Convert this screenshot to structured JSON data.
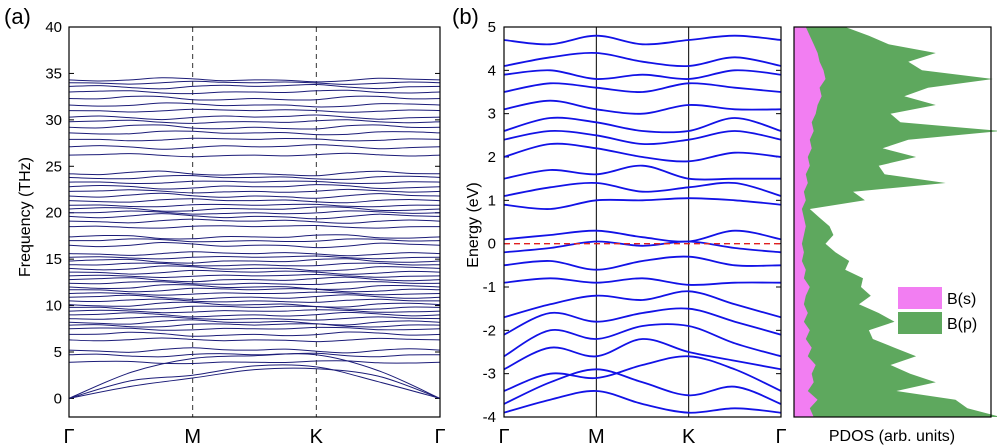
{
  "colors": {
    "phonon": "#1c1c78",
    "bands": "#1212e6",
    "fermi": "#e02020",
    "bs": "#f27ef2",
    "bp": "#5ea85e",
    "axis": "#000000",
    "kline": "#333333"
  },
  "chart_data": [
    {
      "panel": "(a)",
      "type": "line",
      "ylabel": "Frequency (THz)",
      "ylim": [
        -2,
        40
      ],
      "yticks": [
        "0",
        "5",
        "10",
        "15",
        "20",
        "25",
        "30",
        "35",
        "40"
      ],
      "xticks": [
        "Γ",
        "M",
        "K",
        "Γ"
      ],
      "vertical_lines": "dashed at M and K",
      "acoustic_branches": [
        {
          "x": [
            0,
            0.5,
            1,
            1.5,
            2,
            2.5,
            3
          ],
          "y": [
            0,
            1.3,
            2.2,
            3.1,
            3.2,
            2.4,
            0
          ]
        },
        {
          "x": [
            0,
            0.5,
            1,
            1.5,
            2,
            2.5,
            3
          ],
          "y": [
            0,
            1.9,
            2.5,
            3.5,
            3.4,
            1.8,
            0
          ]
        },
        {
          "x": [
            0,
            0.5,
            1,
            1.5,
            2,
            2.5,
            3
          ],
          "y": [
            0,
            2.8,
            4.3,
            4.6,
            4.7,
            3.0,
            0
          ]
        }
      ],
      "optical_band_levels_THz": [
        3.9,
        4.7,
        5.2,
        6.3,
        6.9,
        7.5,
        7.9,
        8.2,
        8.6,
        9.0,
        9.4,
        9.8,
        10.1,
        10.5,
        10.9,
        11.3,
        11.7,
        12.0,
        12.4,
        12.8,
        13.2,
        13.6,
        14.0,
        14.4,
        14.8,
        15.2,
        15.6,
        16.5,
        17.0,
        17.4,
        18.5,
        19.1,
        19.6,
        20.0,
        20.4,
        20.8,
        21.3,
        21.8,
        22.3,
        22.8,
        23.3,
        23.8,
        24.2,
        26.2,
        27.1,
        27.9,
        28.6,
        29.2,
        29.8,
        30.3,
        31.0,
        31.6,
        32.3,
        33.0,
        33.6,
        34.0,
        34.3
      ]
    },
    {
      "panel": "(b)",
      "type": "line",
      "ylabel": "Energy (eV)",
      "ylim": [
        -4,
        5
      ],
      "yticks": [
        "-4",
        "-3",
        "-2",
        "-1",
        "0",
        "1",
        "2",
        "3",
        "4",
        "5"
      ],
      "xticks": [
        "Γ",
        "M",
        "K",
        "Γ"
      ],
      "fermi_level_eV": 0,
      "bands": [
        {
          "x": [
            0,
            0.5,
            1,
            1.5,
            2,
            2.5,
            3
          ],
          "y": [
            -3.9,
            -3.6,
            -3.4,
            -3.7,
            -3.9,
            -3.8,
            -3.9
          ]
        },
        {
          "x": [
            0,
            0.5,
            1,
            1.5,
            2,
            2.5,
            3
          ],
          "y": [
            -3.7,
            -3.2,
            -2.9,
            -3.2,
            -3.5,
            -3.3,
            -3.7
          ]
        },
        {
          "x": [
            0,
            0.5,
            1,
            1.5,
            2,
            2.5,
            3
          ],
          "y": [
            -3.4,
            -3.0,
            -3.1,
            -2.8,
            -2.6,
            -2.9,
            -3.4
          ]
        },
        {
          "x": [
            0,
            0.5,
            1,
            1.5,
            2,
            2.5,
            3
          ],
          "y": [
            -2.9,
            -2.4,
            -2.6,
            -2.2,
            -2.5,
            -2.7,
            -2.9
          ]
        },
        {
          "x": [
            0,
            0.5,
            1,
            1.5,
            2,
            2.5,
            3
          ],
          "y": [
            -2.6,
            -2.0,
            -2.2,
            -1.9,
            -1.9,
            -2.3,
            -2.6
          ]
        },
        {
          "x": [
            0,
            0.5,
            1,
            1.5,
            2,
            2.5,
            3
          ],
          "y": [
            -2.1,
            -1.6,
            -1.8,
            -1.6,
            -1.5,
            -1.8,
            -2.1
          ]
        },
        {
          "x": [
            0,
            0.5,
            1,
            1.5,
            2,
            2.5,
            3
          ],
          "y": [
            -1.7,
            -1.4,
            -1.2,
            -1.3,
            -1.1,
            -1.4,
            -1.7
          ]
        },
        {
          "x": [
            0,
            0.5,
            1,
            1.5,
            2,
            2.5,
            3
          ],
          "y": [
            -0.9,
            -0.8,
            -0.9,
            -0.8,
            -0.95,
            -0.9,
            -0.9
          ]
        },
        {
          "x": [
            0,
            0.5,
            1,
            1.5,
            2,
            2.5,
            3
          ],
          "y": [
            -0.5,
            -0.4,
            -0.6,
            -0.4,
            -0.3,
            -0.5,
            -0.5
          ]
        },
        {
          "x": [
            0,
            0.5,
            1,
            1.5,
            2,
            2.5,
            3
          ],
          "y": [
            -0.2,
            -0.1,
            0.05,
            -0.05,
            0.05,
            -0.1,
            -0.2
          ]
        },
        {
          "x": [
            0,
            0.5,
            1,
            1.5,
            2,
            2.5,
            3
          ],
          "y": [
            0.1,
            0.2,
            0.3,
            0.15,
            0.05,
            0.3,
            0.1
          ]
        },
        {
          "x": [
            0,
            0.5,
            1,
            1.5,
            2,
            2.5,
            3
          ],
          "y": [
            0.9,
            0.8,
            1.0,
            1.0,
            1.05,
            1.0,
            0.9
          ]
        },
        {
          "x": [
            0,
            0.5,
            1,
            1.5,
            2,
            2.5,
            3
          ],
          "y": [
            1.1,
            1.3,
            1.4,
            1.2,
            1.3,
            1.4,
            1.1
          ]
        },
        {
          "x": [
            0,
            0.5,
            1,
            1.5,
            2,
            2.5,
            3
          ],
          "y": [
            1.5,
            1.7,
            1.6,
            1.8,
            1.5,
            1.5,
            1.5
          ]
        },
        {
          "x": [
            0,
            0.5,
            1,
            1.5,
            2,
            2.5,
            3
          ],
          "y": [
            2.0,
            2.3,
            2.2,
            2.0,
            1.9,
            2.1,
            2.0
          ]
        },
        {
          "x": [
            0,
            0.5,
            1,
            1.5,
            2,
            2.5,
            3
          ],
          "y": [
            2.4,
            2.6,
            2.5,
            2.3,
            2.4,
            2.6,
            2.4
          ]
        },
        {
          "x": [
            0,
            0.5,
            1,
            1.5,
            2,
            2.5,
            3
          ],
          "y": [
            2.6,
            2.9,
            2.8,
            2.6,
            2.6,
            2.9,
            2.6
          ]
        },
        {
          "x": [
            0,
            0.5,
            1,
            1.5,
            2,
            2.5,
            3
          ],
          "y": [
            3.1,
            3.3,
            3.1,
            3.0,
            3.2,
            3.1,
            3.1
          ]
        },
        {
          "x": [
            0,
            0.5,
            1,
            1.5,
            2,
            2.5,
            3
          ],
          "y": [
            3.5,
            3.7,
            3.6,
            3.5,
            3.7,
            3.6,
            3.5
          ]
        },
        {
          "x": [
            0,
            0.5,
            1,
            1.5,
            2,
            2.5,
            3
          ],
          "y": [
            3.9,
            4.0,
            3.8,
            3.9,
            3.8,
            4.0,
            3.9
          ]
        },
        {
          "x": [
            0,
            0.5,
            1,
            1.5,
            2,
            2.5,
            3
          ],
          "y": [
            4.1,
            4.3,
            4.4,
            4.2,
            4.1,
            4.3,
            4.1
          ]
        },
        {
          "x": [
            0,
            0.5,
            1,
            1.5,
            2,
            2.5,
            3
          ],
          "y": [
            4.7,
            4.6,
            4.8,
            4.6,
            4.7,
            4.8,
            4.7
          ]
        }
      ]
    },
    {
      "type": "area",
      "xlabel": "PDOS (arb. units)",
      "ylim": [
        -4,
        5
      ],
      "series": [
        {
          "name": "B(s)",
          "energy": [
            -4.0,
            -3.8,
            -3.6,
            -3.4,
            -3.2,
            -3.0,
            -2.8,
            -2.6,
            -2.4,
            -2.2,
            -2.0,
            -1.8,
            -1.6,
            -1.4,
            -1.2,
            -1.0,
            -0.8,
            -0.6,
            -0.4,
            -0.2,
            0.0,
            0.2,
            0.4,
            0.6,
            0.8,
            1.0,
            1.2,
            1.4,
            1.6,
            1.8,
            2.0,
            2.2,
            2.4,
            2.6,
            2.8,
            3.0,
            3.2,
            3.4,
            3.6,
            3.8,
            4.0,
            4.2,
            4.4,
            4.6,
            4.8,
            5.0
          ],
          "values": [
            0.1,
            0.08,
            0.12,
            0.07,
            0.1,
            0.09,
            0.11,
            0.07,
            0.09,
            0.06,
            0.08,
            0.05,
            0.07,
            0.05,
            0.06,
            0.08,
            0.05,
            0.06,
            0.04,
            0.05,
            0.04,
            0.05,
            0.06,
            0.05,
            0.04,
            0.06,
            0.05,
            0.07,
            0.06,
            0.08,
            0.07,
            0.09,
            0.08,
            0.1,
            0.09,
            0.11,
            0.12,
            0.14,
            0.13,
            0.16,
            0.15,
            0.13,
            0.12,
            0.1,
            0.08,
            0.06
          ]
        },
        {
          "name": "B(p)",
          "energy": [
            -4.0,
            -3.8,
            -3.6,
            -3.4,
            -3.2,
            -3.0,
            -2.8,
            -2.6,
            -2.4,
            -2.2,
            -2.0,
            -1.8,
            -1.6,
            -1.4,
            -1.2,
            -1.0,
            -0.8,
            -0.6,
            -0.4,
            -0.2,
            0.0,
            0.2,
            0.4,
            0.6,
            0.8,
            1.0,
            1.2,
            1.4,
            1.6,
            1.8,
            2.0,
            2.2,
            2.4,
            2.6,
            2.8,
            3.0,
            3.2,
            3.4,
            3.6,
            3.8,
            4.0,
            4.2,
            4.4,
            4.6,
            4.8,
            5.0
          ],
          "values": [
            0.95,
            0.8,
            0.7,
            0.45,
            0.62,
            0.5,
            0.38,
            0.55,
            0.42,
            0.34,
            0.3,
            0.46,
            0.36,
            0.28,
            0.33,
            0.26,
            0.3,
            0.2,
            0.24,
            0.16,
            0.12,
            0.15,
            0.12,
            0.08,
            0.04,
            0.3,
            0.25,
            0.7,
            0.4,
            0.35,
            0.55,
            0.36,
            0.5,
            0.95,
            0.45,
            0.38,
            0.6,
            0.42,
            0.55,
            0.85,
            0.5,
            0.45,
            0.6,
            0.38,
            0.3,
            0.2
          ]
        }
      ],
      "legend_placement": "right-center"
    }
  ]
}
